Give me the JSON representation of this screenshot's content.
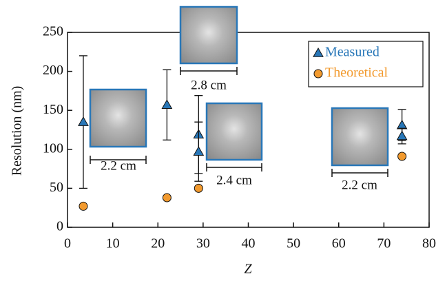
{
  "chart_data": {
    "type": "scatter",
    "x_label": "Z",
    "y_label": "Resolution (nm)",
    "xlim": [
      0,
      80
    ],
    "xticks": [
      0,
      10,
      20,
      30,
      40,
      50,
      60,
      70,
      80
    ],
    "ylim": [
      0,
      250
    ],
    "yticks": [
      0,
      50,
      100,
      150,
      200,
      250
    ],
    "legend": "upper right",
    "series": [
      {
        "name": "Measured",
        "color": "#2877b8",
        "marker": "triangle",
        "x": [
          3.5,
          22,
          29,
          29,
          74,
          74
        ],
        "values": [
          135,
          157,
          119,
          97,
          131,
          117
        ],
        "errors": [
          85,
          45,
          50,
          38,
          20,
          10
        ]
      },
      {
        "name": "Theoretical",
        "color": "#f29a2e",
        "marker": "circle",
        "x": [
          3.5,
          22,
          29,
          74
        ],
        "values": [
          27,
          38,
          50,
          91
        ]
      }
    ],
    "annotations": [
      "2.2 cm",
      "2.8 cm",
      "2.4 cm",
      "2.2 cm"
    ]
  }
}
